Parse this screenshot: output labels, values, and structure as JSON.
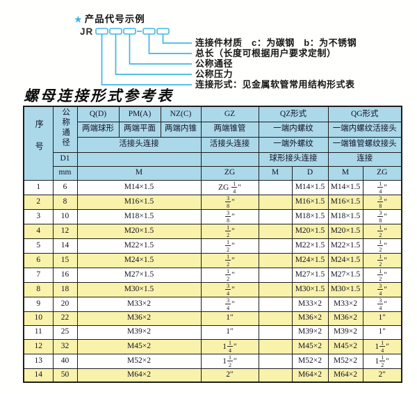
{
  "diagram": {
    "star": "★",
    "title": "产品代号示例",
    "prefix": "JR",
    "labels": [
      "连接件材质　c：为碳钢　b：为不锈钢",
      "总长（长度可根据用户要求定制）",
      "公称通径",
      "公称压力",
      "连接形式：见金属软管常用结构形式表"
    ]
  },
  "table_title": "螺母连接形式参考表",
  "table": {
    "header": {
      "seq": "序号",
      "dn": "公称通径",
      "d1": "D1",
      "mm": "mm",
      "col_q": "Q(D)",
      "col_pm": "PM(A)",
      "col_nz": "NZ(C)",
      "col_gz": "GZ",
      "col_qz": "QZ形式",
      "col_qg": "QG形式",
      "q_desc": "两端球形",
      "pm_desc": "两端平面",
      "nz_desc": "两端内锥",
      "gz_desc": "两端锥管",
      "qz_desc1": "一端内螺纹",
      "qg_desc1": "一端内螺纹活接头",
      "union_conn": "活接头连接",
      "gz_conn": "活接头连接",
      "qz_desc2": "一端外螺纹",
      "qg_desc2": "一端锥管螺纹接头",
      "qz_conn": "球形接头连接",
      "qg_conn": "连接",
      "m1": "M",
      "zg1": "ZG",
      "m2": "M",
      "d2": "D",
      "m3": "M",
      "zg3": "ZG"
    },
    "rows": [
      {
        "seq": "1",
        "dn": "6",
        "m": "M14×1.5",
        "zg": "ZG {1/4}″",
        "qz_m": "",
        "qz_d": "M14×1.5",
        "qg_m": "M14×1.5",
        "qg_zg": "{1/4}″"
      },
      {
        "seq": "2",
        "dn": "8",
        "m": "M16×1.5",
        "zg": "{3/8}″",
        "qz_m": "",
        "qz_d": "M16×1.5",
        "qg_m": "M16×1.5",
        "qg_zg": "{3/8}″"
      },
      {
        "seq": "3",
        "dn": "10",
        "m": "M18×1.5",
        "zg": "{3/8}″",
        "qz_m": "",
        "qz_d": "M18×1.5",
        "qg_m": "M18×1.5",
        "qg_zg": "{3/8}″"
      },
      {
        "seq": "4",
        "dn": "12",
        "m": "M20×1.5",
        "zg": "{1/2}″",
        "qz_m": "",
        "qz_d": "M20×1.5",
        "qg_m": "M20×1.5",
        "qg_zg": "{1/2}″"
      },
      {
        "seq": "5",
        "dn": "14",
        "m": "M22×1.5",
        "zg": "{1/2}″",
        "qz_m": "",
        "qz_d": "M22×1.5",
        "qg_m": "M22×1.5",
        "qg_zg": "{1/2}″"
      },
      {
        "seq": "6",
        "dn": "15",
        "m": "M24×1.5",
        "zg": "{1/2}″",
        "qz_m": "",
        "qz_d": "M24×1.5",
        "qg_m": "M24×1.5",
        "qg_zg": "{1/2}″"
      },
      {
        "seq": "7",
        "dn": "16",
        "m": "M27×1.5",
        "zg": "{1/2}″",
        "qz_m": "",
        "qz_d": "M27×1.5",
        "qg_m": "M27×1.5",
        "qg_zg": "{1/2}″"
      },
      {
        "seq": "8",
        "dn": "18",
        "m": "M30×1.5",
        "zg": "{3/4}″",
        "qz_m": "",
        "qz_d": "M30×1.5",
        "qg_m": "M30×1.5",
        "qg_zg": "{3/4}″"
      },
      {
        "seq": "9",
        "dn": "20",
        "m": "M33×2",
        "zg": "{3/4}″",
        "qz_m": "",
        "qz_d": "M33×2",
        "qg_m": "M33×2",
        "qg_zg": "{3/4}″"
      },
      {
        "seq": "10",
        "dn": "22",
        "m": "M36×2",
        "zg": "1″",
        "qz_m": "",
        "qz_d": "M36×2",
        "qg_m": "M36×2",
        "qg_zg": "1″"
      },
      {
        "seq": "11",
        "dn": "25",
        "m": "M39×2",
        "zg": "1″",
        "qz_m": "",
        "qz_d": "M39×2",
        "qg_m": "M39×2",
        "qg_zg": "1″"
      },
      {
        "seq": "12",
        "dn": "32",
        "m": "M45×2",
        "zg": "1{1/4}″",
        "qz_m": "",
        "qz_d": "M45×2",
        "qg_m": "M45×2",
        "qg_zg": "1{1/4}″"
      },
      {
        "seq": "13",
        "dn": "40",
        "m": "M52×2",
        "zg": "1{1/2}″",
        "qz_m": "",
        "qz_d": "M52×2",
        "qg_m": "M52×2",
        "qg_zg": "1{1/2}″"
      },
      {
        "seq": "14",
        "dn": "50",
        "m": "M64×2",
        "zg": "2″",
        "qz_m": "",
        "qz_d": "M64×2",
        "qg_m": "M64×2",
        "qg_zg": "2″"
      }
    ]
  },
  "colors": {
    "accent": "#3fb6e4",
    "header_bg": "#abd9ea",
    "row_alt_bg": "#f9f2ab",
    "border": "#1c1c1c"
  }
}
